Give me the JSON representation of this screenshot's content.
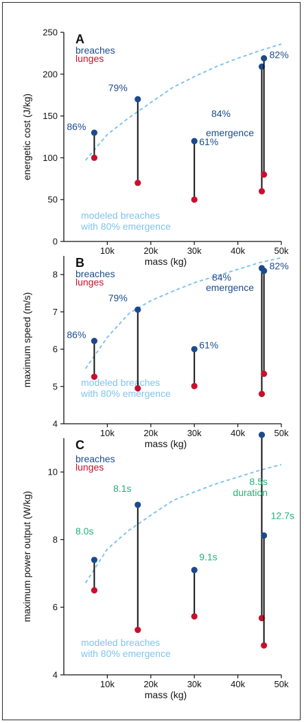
{
  "colors": {
    "breach": "#1b4b8c",
    "lunge": "#c8102e",
    "model": "#7fc4ec",
    "duration": "#1fb37a",
    "stem": "#111111",
    "axis": "#111111"
  },
  "chart_data": [
    {
      "type": "scatter",
      "panel_letter": "A",
      "xlabel": "mass (kg)",
      "ylabel": "energetic cost (J/kg)",
      "xlim": [
        0,
        50000
      ],
      "ylim": [
        0,
        250
      ],
      "xticks": [
        10000,
        20000,
        30000,
        40000,
        50000
      ],
      "xtick_labels": [
        "10k",
        "20k",
        "30k",
        "40k",
        "50k"
      ],
      "yticks": [
        0,
        50,
        100,
        150,
        200,
        250
      ],
      "ytick_labels": [
        "0",
        "50",
        "100",
        "150",
        "200",
        "250"
      ],
      "legend": [
        {
          "label": "breaches",
          "color_key": "breach"
        },
        {
          "label": "lunges",
          "color_key": "lunge"
        }
      ],
      "model_label": [
        "modeled breaches",
        "with 80% emergence"
      ],
      "model_curve": {
        "x": [
          5000,
          10000,
          15000,
          20000,
          25000,
          30000,
          35000,
          40000,
          45000,
          50000
        ],
        "y": [
          97,
          128,
          148,
          166,
          184,
          197,
          209,
          219,
          228,
          236
        ]
      },
      "pairs": [
        {
          "x": 7000,
          "breach": 130,
          "lunge": 100,
          "label": "86%"
        },
        {
          "x": 17000,
          "breach": 170,
          "lunge": 70,
          "label": "79%"
        },
        {
          "x": 30000,
          "breach": 120,
          "lunge": 50,
          "label": "61%"
        },
        {
          "x": 45500,
          "breach": 209,
          "lunge": 60,
          "label": "84%"
        },
        {
          "x": 46000,
          "breach": 219,
          "lunge": 80,
          "label": "82%"
        }
      ],
      "annotation": "emergence"
    },
    {
      "type": "scatter",
      "panel_letter": "B",
      "xlabel": "mass (kg)",
      "ylabel": "maximum speed (m/s)",
      "xlim": [
        0,
        50000
      ],
      "ylim": [
        4,
        8.5
      ],
      "xticks": [
        10000,
        20000,
        30000,
        40000,
        50000
      ],
      "xtick_labels": [
        "10k",
        "20k",
        "30k",
        "40k",
        "50k"
      ],
      "yticks": [
        4,
        5,
        6,
        7,
        8
      ],
      "ytick_labels": [
        "4",
        "5",
        "6",
        "7",
        "8"
      ],
      "legend": [
        {
          "label": "breaches",
          "color_key": "breach"
        },
        {
          "label": "lunges",
          "color_key": "lunge"
        }
      ],
      "model_label": [
        "modeled breaches",
        "with 80% emergence"
      ],
      "model_curve": {
        "x": [
          5000,
          10000,
          15000,
          20000,
          25000,
          30000,
          35000,
          40000,
          45000,
          50000
        ],
        "y": [
          5.48,
          6.32,
          6.96,
          7.3,
          7.55,
          7.78,
          7.96,
          8.14,
          8.32,
          8.45
        ]
      },
      "pairs": [
        {
          "x": 7000,
          "breach": 6.22,
          "lunge": 5.26,
          "label": "86%"
        },
        {
          "x": 17000,
          "breach": 7.06,
          "lunge": 4.95,
          "label": "79%"
        },
        {
          "x": 30000,
          "breach": 6.0,
          "lunge": 5.01,
          "label": "61%"
        },
        {
          "x": 45500,
          "breach": 8.17,
          "lunge": 4.8,
          "label": "84%"
        },
        {
          "x": 46000,
          "breach": 8.1,
          "lunge": 5.34,
          "label": "82%"
        }
      ],
      "annotation": "emergence"
    },
    {
      "type": "scatter",
      "panel_letter": "C",
      "xlabel": "mass (kg)",
      "ylabel": "maximum power output (W/kg)",
      "xlim": [
        0,
        50000
      ],
      "ylim": [
        4,
        11
      ],
      "xticks": [
        10000,
        20000,
        30000,
        40000,
        50000
      ],
      "xtick_labels": [
        "10k",
        "20k",
        "30k",
        "40k",
        "50k"
      ],
      "yticks": [
        4,
        6,
        8,
        10
      ],
      "ytick_labels": [
        "4",
        "6",
        "8",
        "10"
      ],
      "legend": [
        {
          "label": "breaches",
          "color_key": "breach"
        },
        {
          "label": "lunges",
          "color_key": "lunge"
        }
      ],
      "model_label": [
        "modeled breaches",
        "with 80% emergence"
      ],
      "model_curve": {
        "x": [
          5000,
          10000,
          15000,
          20000,
          25000,
          30000,
          35000,
          40000,
          45000,
          50000
        ],
        "y": [
          6.72,
          7.72,
          8.28,
          8.72,
          9.15,
          9.41,
          9.65,
          9.85,
          10.05,
          10.22
        ]
      },
      "pairs": [
        {
          "x": 7000,
          "breach": 7.4,
          "lunge": 6.5,
          "label": "8.0s"
        },
        {
          "x": 17000,
          "breach": 9.03,
          "lunge": 5.33,
          "label": "8.1s"
        },
        {
          "x": 30000,
          "breach": 7.1,
          "lunge": 5.73,
          "label": "9.1s"
        },
        {
          "x": 45500,
          "breach": 11.1,
          "lunge": 5.68,
          "label": "8.5s"
        },
        {
          "x": 46000,
          "breach": 8.12,
          "lunge": 4.87,
          "label": "12.7s"
        }
      ],
      "annotation": "duration"
    }
  ]
}
